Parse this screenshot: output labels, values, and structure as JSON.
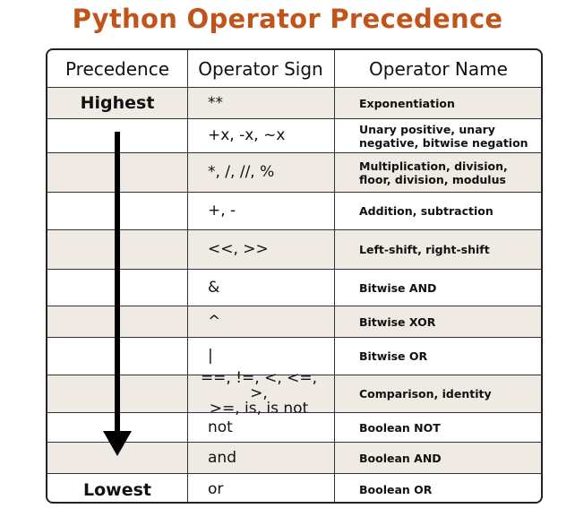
{
  "title": "Python Operator Precedence",
  "headers": {
    "precedence": "Precedence",
    "operator_sign": "Operator Sign",
    "operator_name": "Operator Name"
  },
  "precedence_labels": {
    "highest": "Highest",
    "lowest": "Lowest"
  },
  "rows": [
    {
      "sign": "**",
      "name": "Exponentiation"
    },
    {
      "sign": "+x, -x, ~x",
      "name": "Unary positive, unary negative, bitwise negation"
    },
    {
      "sign": "*, /, //, %",
      "name": "Multiplication, division, floor, division, modulus"
    },
    {
      "sign": "+, -",
      "name": "Addition, subtraction"
    },
    {
      "sign": "<<, >>",
      "name": "Left-shift, right-shift"
    },
    {
      "sign": "&",
      "name": "Bitwise AND"
    },
    {
      "sign": "^",
      "name": "Bitwise XOR"
    },
    {
      "sign": "|",
      "name": "Bitwise OR"
    },
    {
      "sign": "==, !=, <, <=, >,\n>=, is, is not",
      "name": "Comparison, identity"
    },
    {
      "sign": "not",
      "name": "Boolean NOT"
    },
    {
      "sign": "and",
      "name": "Boolean AND"
    },
    {
      "sign": "or",
      "name": "Boolean OR"
    }
  ],
  "colors": {
    "title": "#c0541a",
    "shade": "#efebe4",
    "border": "#222222"
  }
}
